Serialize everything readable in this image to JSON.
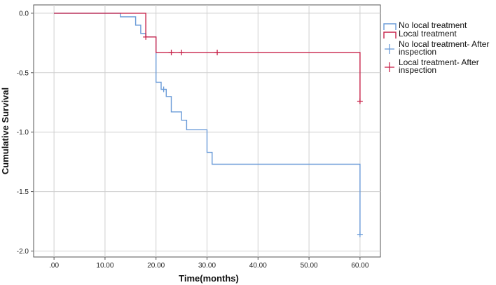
{
  "chart_data": {
    "type": "line",
    "xlabel": "Time(months)",
    "ylabel": "Cumulative Survival",
    "xlim": [
      -4,
      64
    ],
    "ylim": [
      -2.05,
      0.07
    ],
    "x_ticks": [
      0,
      10,
      20,
      30,
      40,
      50,
      60
    ],
    "x_tick_labels": [
      ".00",
      "10.00",
      "20.00",
      "30.00",
      "40.00",
      "50.00",
      "60.00"
    ],
    "y_ticks": [
      0,
      -0.5,
      -1.0,
      -1.5,
      -2.0
    ],
    "y_tick_labels": [
      "0.0",
      "-0.5",
      "-1.0",
      "-1.5",
      "-2.0"
    ],
    "grid": true,
    "legend_position": "right",
    "series": [
      {
        "name": "No local treatment",
        "color": "#6a9bd8",
        "step_points": [
          [
            0,
            0
          ],
          [
            13,
            0
          ],
          [
            13,
            -0.03
          ],
          [
            16,
            -0.03
          ],
          [
            16,
            -0.1
          ],
          [
            17,
            -0.1
          ],
          [
            17,
            -0.17
          ],
          [
            18,
            -0.17
          ],
          [
            18,
            -0.2
          ],
          [
            20,
            -0.2
          ],
          [
            20,
            -0.58
          ],
          [
            21,
            -0.58
          ],
          [
            21,
            -0.64
          ],
          [
            22,
            -0.64
          ],
          [
            22,
            -0.7
          ],
          [
            23,
            -0.7
          ],
          [
            23,
            -0.83
          ],
          [
            25,
            -0.83
          ],
          [
            25,
            -0.9
          ],
          [
            26,
            -0.9
          ],
          [
            26,
            -0.98
          ],
          [
            30,
            -0.98
          ],
          [
            30,
            -1.17
          ],
          [
            31,
            -1.17
          ],
          [
            31,
            -1.27
          ],
          [
            60,
            -1.27
          ],
          [
            60,
            -1.86
          ]
        ],
        "censored": [
          [
            21.5,
            -0.64
          ],
          [
            60,
            -1.86
          ]
        ]
      },
      {
        "name": "Local treatment",
        "color": "#c8244b",
        "step_points": [
          [
            0,
            0
          ],
          [
            18,
            0
          ],
          [
            18,
            -0.2
          ],
          [
            20,
            -0.2
          ],
          [
            20,
            -0.33
          ],
          [
            60,
            -0.33
          ],
          [
            60,
            -0.74
          ]
        ],
        "censored": [
          [
            18,
            -0.2
          ],
          [
            23,
            -0.33
          ],
          [
            25,
            -0.33
          ],
          [
            32,
            -0.33
          ],
          [
            60,
            -0.74
          ]
        ]
      }
    ],
    "legend": [
      {
        "label": "No local treatment",
        "color": "#6a9bd8",
        "marker": "step"
      },
      {
        "label": "Local treatment",
        "color": "#c8244b",
        "marker": "step"
      },
      {
        "label": "No local treatment- After inspection",
        "color": "#6a9bd8",
        "marker": "cross"
      },
      {
        "label": "Local treatment- After inspection",
        "color": "#c8244b",
        "marker": "cross"
      }
    ]
  }
}
